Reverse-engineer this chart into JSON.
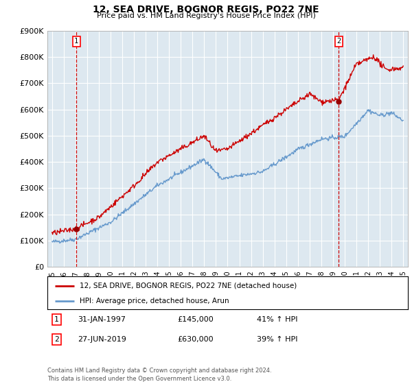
{
  "title": "12, SEA DRIVE, BOGNOR REGIS, PO22 7NE",
  "subtitle": "Price paid vs. HM Land Registry's House Price Index (HPI)",
  "ylim": [
    0,
    900000
  ],
  "yticks": [
    0,
    100000,
    200000,
    300000,
    400000,
    500000,
    600000,
    700000,
    800000,
    900000
  ],
  "ytick_labels": [
    "£0",
    "£100K",
    "£200K",
    "£300K",
    "£400K",
    "£500K",
    "£600K",
    "£700K",
    "£800K",
    "£900K"
  ],
  "hpi_color": "#6699cc",
  "price_color": "#cc0000",
  "marker1_x": 1997.08,
  "marker1_price": 145000,
  "marker2_x": 2019.5,
  "marker2_price": 630000,
  "plot_bg_color": "#dde8f0",
  "fig_bg_color": "#ffffff",
  "grid_color": "#ffffff",
  "legend_line1": "12, SEA DRIVE, BOGNOR REGIS, PO22 7NE (detached house)",
  "legend_line2": "HPI: Average price, detached house, Arun",
  "footer": "Contains HM Land Registry data © Crown copyright and database right 2024.\nThis data is licensed under the Open Government Licence v3.0.",
  "xtick_years": [
    1995,
    1996,
    1997,
    1998,
    1999,
    2000,
    2001,
    2002,
    2003,
    2004,
    2005,
    2006,
    2007,
    2008,
    2009,
    2010,
    2011,
    2012,
    2013,
    2014,
    2015,
    2016,
    2017,
    2018,
    2019,
    2020,
    2021,
    2022,
    2023,
    2024,
    2025
  ]
}
